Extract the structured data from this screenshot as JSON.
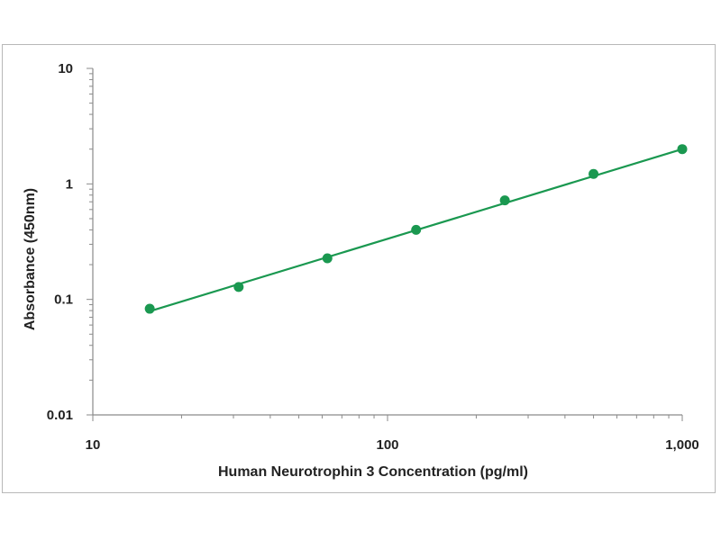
{
  "chart_data": {
    "type": "scatter",
    "title": "",
    "xlabel": "Human Neurotrophin 3 Concentration (pg/ml)",
    "ylabel": "Absorbance (450nm)",
    "x_scale": "log",
    "y_scale": "log",
    "xlim": [
      10,
      1000
    ],
    "ylim": [
      0.01,
      10
    ],
    "x_ticks": [
      {
        "value": 10,
        "label": "10"
      },
      {
        "value": 100,
        "label": "100"
      },
      {
        "value": 1000,
        "label": "1,000"
      }
    ],
    "y_ticks": [
      {
        "value": 10,
        "label": "10"
      },
      {
        "value": 1,
        "label": "1"
      },
      {
        "value": 0.1,
        "label": "0.1"
      },
      {
        "value": 0.01,
        "label": "0.01"
      }
    ],
    "grid": false,
    "legend": "none",
    "color": "#1a9850",
    "series": [
      {
        "x": [
          15.6,
          31.25,
          62.5,
          125,
          250,
          500,
          1000
        ],
        "y": [
          0.083,
          0.128,
          0.227,
          0.4,
          0.72,
          1.22,
          2.0
        ]
      }
    ],
    "fit_line": {
      "x": [
        15.6,
        1000
      ],
      "y": [
        0.079,
        2.0
      ]
    }
  }
}
